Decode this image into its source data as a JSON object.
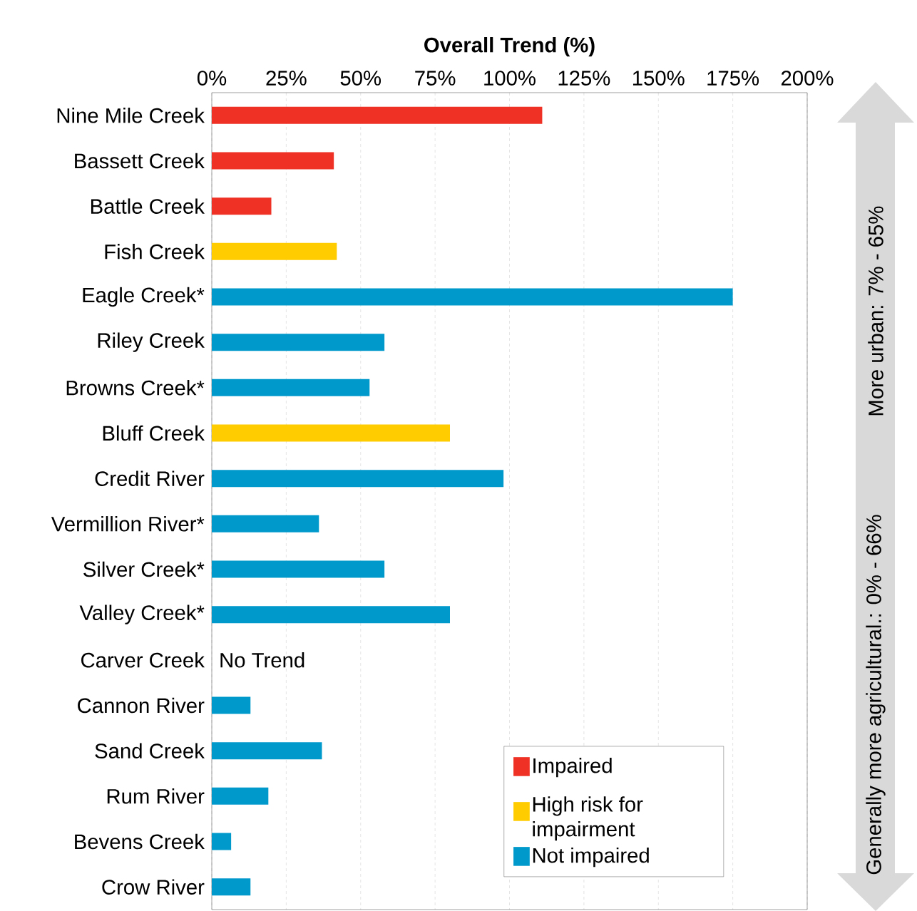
{
  "chart_data": {
    "type": "bar",
    "orientation": "horizontal",
    "xlabel": "Overall Trend (%)",
    "categories": [
      "Nine Mile Creek",
      "Bassett Creek",
      "Battle Creek",
      "Fish Creek",
      "Eagle Creek*",
      "Riley Creek",
      "Browns Creek*",
      "Bluff Creek",
      "Credit River",
      "Vermillion River*",
      "Silver Creek*",
      "Valley Creek*",
      "Carver Creek",
      "Cannon River",
      "Sand Creek",
      "Rum River",
      "Bevens Creek",
      "Crow River"
    ],
    "series": [
      {
        "name": "Impaired",
        "color": "#ee3124",
        "values": [
          111,
          41,
          20,
          null,
          null,
          null,
          null,
          null,
          null,
          null,
          null,
          null,
          null,
          null,
          null,
          null,
          null,
          null
        ]
      },
      {
        "name": "High risk for impairment",
        "color": "#ffcc00",
        "values": [
          null,
          null,
          null,
          42,
          null,
          null,
          null,
          80,
          null,
          null,
          null,
          null,
          null,
          null,
          null,
          null,
          null,
          null
        ]
      },
      {
        "name": "Not impaired",
        "color": "#0099cc",
        "values": [
          null,
          null,
          null,
          null,
          175,
          58,
          53,
          null,
          98,
          36,
          58,
          80,
          null,
          13,
          37,
          19,
          6.5,
          13
        ]
      }
    ],
    "xlim": [
      0,
      200
    ],
    "xticks": [
      {
        "value": 0,
        "label": "0%"
      },
      {
        "value": 25,
        "label": "25%"
      },
      {
        "value": 50,
        "label": "50%"
      },
      {
        "value": 75,
        "label": "75%"
      },
      {
        "value": 100,
        "label": "100%"
      },
      {
        "value": 125,
        "label": "125%"
      },
      {
        "value": 150,
        "label": "150%"
      },
      {
        "value": 175,
        "label": "175%"
      },
      {
        "value": 200,
        "label": "200%"
      }
    ],
    "grid": "x",
    "legend": "bottom right",
    "annotations": [
      "No Trend",
      "Generally more agricultural.: 0% - 66%",
      "More urban:  7% - 65%"
    ]
  }
}
